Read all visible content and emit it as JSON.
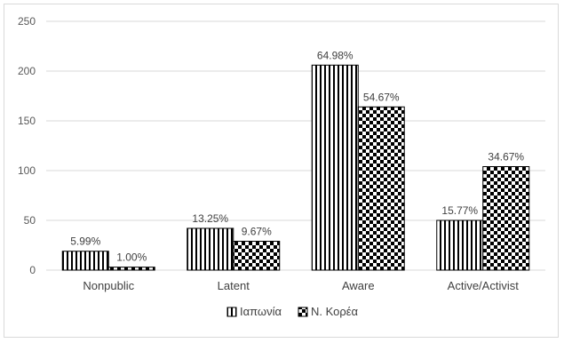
{
  "chart_data": {
    "type": "bar",
    "title": "",
    "xlabel": "",
    "ylabel": "",
    "categories": [
      "Nonpublic",
      "Latent",
      "Aware",
      "Active/Activist"
    ],
    "ylim": [
      0,
      250
    ],
    "yticks": [
      0,
      50,
      100,
      150,
      200,
      250
    ],
    "grid": true,
    "legend_position": "bottom",
    "series": [
      {
        "name": "Ιαπωνία",
        "pattern": "vertical-stripes",
        "values": [
          19,
          42,
          206,
          50
        ],
        "labels": [
          "5.99%",
          "13.25%",
          "64.98%",
          "15.77%"
        ]
      },
      {
        "name": "N. Κορέα",
        "pattern": "checkerboard",
        "values": [
          3,
          29,
          164,
          104
        ],
        "labels": [
          "1.00%",
          "9.67%",
          "54.67%",
          "34.67%"
        ]
      }
    ],
    "colors": {
      "ink": "#000000",
      "grid": "#d9d9d9",
      "text": "#404040"
    }
  }
}
